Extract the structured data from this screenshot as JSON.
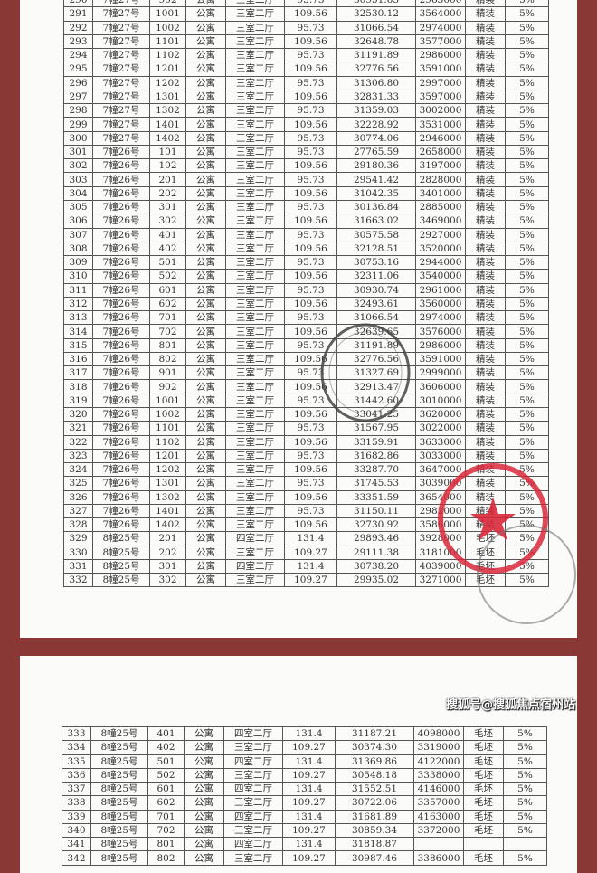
{
  "columns_note_free": true,
  "page1_rows": [
    [
      "290",
      "7幢27号",
      "902",
      "公寓",
      "三室二厅",
      "95.73",
      "30951.63",
      "2963000",
      "精装",
      "5%"
    ],
    [
      "291",
      "7幢27号",
      "1001",
      "公寓",
      "三室二厅",
      "109.56",
      "32530.12",
      "3564000",
      "精装",
      "5%"
    ],
    [
      "292",
      "7幢27号",
      "1002",
      "公寓",
      "三室二厅",
      "95.73",
      "31066.54",
      "2974000",
      "精装",
      "5%"
    ],
    [
      "293",
      "7幢27号",
      "1101",
      "公寓",
      "三室二厅",
      "109.56",
      "32648.78",
      "3577000",
      "精装",
      "5%"
    ],
    [
      "294",
      "7幢27号",
      "1102",
      "公寓",
      "三室二厅",
      "95.73",
      "31191.89",
      "2986000",
      "精装",
      "5%"
    ],
    [
      "295",
      "7幢27号",
      "1201",
      "公寓",
      "三室二厅",
      "109.56",
      "32776.56",
      "3591000",
      "精装",
      "5%"
    ],
    [
      "296",
      "7幢27号",
      "1202",
      "公寓",
      "三室二厅",
      "95.73",
      "31306.80",
      "2997000",
      "精装",
      "5%"
    ],
    [
      "297",
      "7幢27号",
      "1301",
      "公寓",
      "三室二厅",
      "109.56",
      "32831.33",
      "3597000",
      "精装",
      "5%"
    ],
    [
      "298",
      "7幢27号",
      "1302",
      "公寓",
      "三室二厅",
      "95.73",
      "31359.03",
      "3002000",
      "精装",
      "5%"
    ],
    [
      "299",
      "7幢27号",
      "1401",
      "公寓",
      "三室二厅",
      "109.56",
      "32228.92",
      "3531000",
      "精装",
      "5%"
    ],
    [
      "300",
      "7幢27号",
      "1402",
      "公寓",
      "三室二厅",
      "95.73",
      "30774.06",
      "2946000",
      "精装",
      "5%"
    ],
    [
      "301",
      "7幢26号",
      "101",
      "公寓",
      "三室二厅",
      "95.73",
      "27765.59",
      "2658000",
      "精装",
      "5%"
    ],
    [
      "302",
      "7幢26号",
      "102",
      "公寓",
      "三室二厅",
      "109.56",
      "29180.36",
      "3197000",
      "精装",
      "5%"
    ],
    [
      "303",
      "7幢26号",
      "201",
      "公寓",
      "三室二厅",
      "95.73",
      "29541.42",
      "2828000",
      "精装",
      "5%"
    ],
    [
      "304",
      "7幢26号",
      "202",
      "公寓",
      "三室二厅",
      "109.56",
      "31042.35",
      "3401000",
      "精装",
      "5%"
    ],
    [
      "305",
      "7幢26号",
      "301",
      "公寓",
      "三室二厅",
      "95.73",
      "30136.84",
      "2885000",
      "精装",
      "5%"
    ],
    [
      "306",
      "7幢26号",
      "302",
      "公寓",
      "三室二厅",
      "109.56",
      "31663.02",
      "3469000",
      "精装",
      "5%"
    ],
    [
      "307",
      "7幢26号",
      "401",
      "公寓",
      "三室二厅",
      "95.73",
      "30575.58",
      "2927000",
      "精装",
      "5%"
    ],
    [
      "308",
      "7幢26号",
      "402",
      "公寓",
      "三室二厅",
      "109.56",
      "32128.51",
      "3520000",
      "精装",
      "5%"
    ],
    [
      "309",
      "7幢26号",
      "501",
      "公寓",
      "三室二厅",
      "95.73",
      "30753.16",
      "2944000",
      "精装",
      "5%"
    ],
    [
      "310",
      "7幢26号",
      "502",
      "公寓",
      "三室二厅",
      "109.56",
      "32311.06",
      "3540000",
      "精装",
      "5%"
    ],
    [
      "311",
      "7幢26号",
      "601",
      "公寓",
      "三室二厅",
      "95.73",
      "30930.74",
      "2961000",
      "精装",
      "5%"
    ],
    [
      "312",
      "7幢26号",
      "602",
      "公寓",
      "三室二厅",
      "109.56",
      "32493.61",
      "3560000",
      "精装",
      "5%"
    ],
    [
      "313",
      "7幢26号",
      "701",
      "公寓",
      "三室二厅",
      "95.73",
      "31066.54",
      "2974000",
      "精装",
      "5%"
    ],
    [
      "314",
      "7幢26号",
      "702",
      "公寓",
      "三室二厅",
      "109.56",
      "32639.65",
      "3576000",
      "精装",
      "5%"
    ],
    [
      "315",
      "7幢26号",
      "801",
      "公寓",
      "三室二厅",
      "95.73",
      "31191.89",
      "2986000",
      "精装",
      "5%"
    ],
    [
      "316",
      "7幢26号",
      "802",
      "公寓",
      "三室二厅",
      "109.56",
      "32776.56",
      "3591000",
      "精装",
      "5%"
    ],
    [
      "317",
      "7幢26号",
      "901",
      "公寓",
      "三室二厅",
      "95.73",
      "31327.69",
      "2999000",
      "精装",
      "5%"
    ],
    [
      "318",
      "7幢26号",
      "902",
      "公寓",
      "三室二厅",
      "109.56",
      "32913.47",
      "3606000",
      "精装",
      "5%"
    ],
    [
      "319",
      "7幢26号",
      "1001",
      "公寓",
      "三室二厅",
      "95.73",
      "31442.60",
      "3010000",
      "精装",
      "5%"
    ],
    [
      "320",
      "7幢26号",
      "1002",
      "公寓",
      "三室二厅",
      "109.56",
      "33041.25",
      "3620000",
      "精装",
      "5%"
    ],
    [
      "321",
      "7幢26号",
      "1101",
      "公寓",
      "三室二厅",
      "95.73",
      "31567.95",
      "3022000",
      "精装",
      "5%"
    ],
    [
      "322",
      "7幢26号",
      "1102",
      "公寓",
      "三室二厅",
      "109.56",
      "33159.91",
      "3633000",
      "精装",
      "5%"
    ],
    [
      "323",
      "7幢26号",
      "1201",
      "公寓",
      "三室二厅",
      "95.73",
      "31682.86",
      "3033000",
      "精装",
      "5%"
    ],
    [
      "324",
      "7幢26号",
      "1202",
      "公寓",
      "三室二厅",
      "109.56",
      "33287.70",
      "3647000",
      "精装",
      "5%"
    ],
    [
      "325",
      "7幢26号",
      "1301",
      "公寓",
      "三室二厅",
      "95.73",
      "31745.53",
      "3039000",
      "精装",
      "5%"
    ],
    [
      "326",
      "7幢26号",
      "1302",
      "公寓",
      "三室二厅",
      "109.56",
      "33351.59",
      "3654000",
      "精装",
      "5%"
    ],
    [
      "327",
      "7幢26号",
      "1401",
      "公寓",
      "三室二厅",
      "95.73",
      "31150.11",
      "2982000",
      "精装",
      "5%"
    ],
    [
      "328",
      "7幢26号",
      "1402",
      "公寓",
      "三室二厅",
      "109.56",
      "32730.92",
      "3586000",
      "精装",
      "5%"
    ],
    [
      "329",
      "8幢25号",
      "201",
      "公寓",
      "四室二厅",
      "131.4",
      "29893.46",
      "3928000",
      "毛坯",
      "5%"
    ],
    [
      "330",
      "8幢25号",
      "202",
      "公寓",
      "三室二厅",
      "109.27",
      "29111.38",
      "3181000",
      "毛坯",
      "5%"
    ],
    [
      "331",
      "8幢25号",
      "301",
      "公寓",
      "四室二厅",
      "131.4",
      "30738.20",
      "4039000",
      "毛坯",
      "5%"
    ],
    [
      "332",
      "8幢25号",
      "302",
      "公寓",
      "三室二厅",
      "109.27",
      "29935.02",
      "3271000",
      "毛坯",
      "5%"
    ]
  ],
  "page2_rows": [
    [
      "333",
      "8幢25号",
      "401",
      "公寓",
      "四室二厅",
      "131.4",
      "31187.21",
      "4098000",
      "毛坯",
      "5%"
    ],
    [
      "334",
      "8幢25号",
      "402",
      "公寓",
      "三室二厅",
      "109.27",
      "30374.30",
      "3319000",
      "毛坯",
      "5%"
    ],
    [
      "335",
      "8幢25号",
      "501",
      "公寓",
      "四室二厅",
      "131.4",
      "31369.86",
      "4122000",
      "毛坯",
      "5%"
    ],
    [
      "336",
      "8幢25号",
      "502",
      "公寓",
      "三室二厅",
      "109.27",
      "30548.18",
      "3338000",
      "毛坯",
      "5%"
    ],
    [
      "337",
      "8幢25号",
      "601",
      "公寓",
      "四室二厅",
      "131.4",
      "31552.51",
      "4146000",
      "毛坯",
      "5%"
    ],
    [
      "338",
      "8幢25号",
      "602",
      "公寓",
      "三室二厅",
      "109.27",
      "30722.06",
      "3357000",
      "毛坯",
      "5%"
    ],
    [
      "339",
      "8幢25号",
      "701",
      "公寓",
      "四室二厅",
      "131.4",
      "31681.89",
      "4163000",
      "毛坯",
      "5%"
    ],
    [
      "340",
      "8幢25号",
      "702",
      "公寓",
      "三室二厅",
      "109.27",
      "30859.34",
      "3372000",
      "毛坯",
      "5%"
    ],
    [
      "341",
      "8幢25号",
      "801",
      "公寓",
      "四室二厅",
      "131.4",
      "31818.87",
      "",
      "",
      ""
    ],
    [
      "342",
      "8幢25号",
      "802",
      "公寓",
      "三室二厅",
      "109.27",
      "30987.46",
      "3386000",
      "毛坯",
      "5%"
    ]
  ],
  "watermark": "搜狐号@搜狐焦点宿州站",
  "colors": {
    "frame": "#8a3836",
    "stamp_red": "#d8283a",
    "stamp_gray": "#555555"
  }
}
